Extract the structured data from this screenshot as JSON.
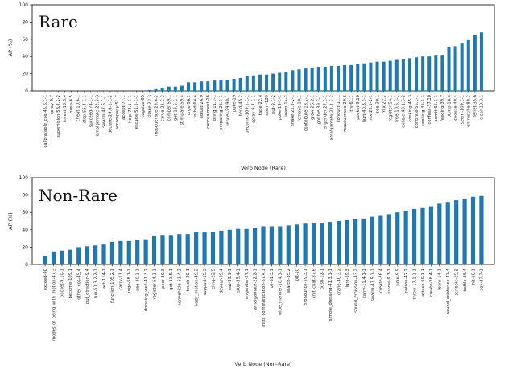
{
  "chart_data": [
    {
      "type": "bar",
      "title": "Rare",
      "xlabel": "Verb Node (Rare)",
      "ylabel": "AP (%)",
      "ylim": [
        0,
        100
      ],
      "yticks": [
        0,
        20,
        40,
        60,
        80,
        100
      ],
      "bar_color": "#1f77b4",
      "grid": false,
      "categories": [
        "calibratable_cos-45.6.1-1",
        "spray-9.7",
        "supervision-58.2.2-2",
        "invest-13.5.4",
        "bush-6.5",
        "cheat-10.6-1",
        "stop-55.4-1-1",
        "succeed-74-1-1",
        "amalgamate-22.2-3",
        "swarm-47.5.1-1",
        "declare-29.4-1-1-2",
        "accompany-51.7",
        "accept-77.1",
        "help-72.1-1-1",
        "escape-51.1-1-1",
        "cognize-85",
        "shake-22.3",
        "masquerade-29.6-2",
        "carve-21.2-2",
        "compel-59.1",
        "get-13.5.1-1",
        "stimulate-59.4",
        "urge-58.1",
        "forbid-64.4",
        "adjust-26.9",
        "concealment-16",
        "bring-11.3-1",
        "preparing-26.3-1",
        "render-29.90-1",
        "poke-19",
        "bend-45.2",
        "become-109.1-1-1",
        "spray-9.7-1-1",
        "tape-22.4",
        "seem-109",
        "put-9.1-2",
        "poke-19-1-1",
        "learn-14-2",
        "shake-22.3-2-1",
        "remove-10.1",
        "contribute-13.2-1",
        "grow-26.2.1",
        "gobble-39.3-1",
        "engender-27.1-1",
        "amalgamate-22.2-3-2",
        "conduct-11.1",
        "masquerade-29.6",
        "try-61.1",
        "pocket-9.10",
        "hurt-40.8.3-1",
        "mix-22.1-2-1",
        "see-30.1",
        "mix-22.2",
        "register-54.1",
        "free-10.6.3-1",
        "exhale-40.1.3-2",
        "cooking-45.3",
        "continue-55.3-1",
        "cooking-45.3-1",
        "confess-37.10",
        "admit-65.3-1",
        "feeding-39.7",
        "bump-18.4",
        "snooze-40.4",
        "seem-109.1-1",
        "entrust/lie-88.2",
        "ferret-35.6",
        "clear-10.3.1"
      ],
      "values": [
        0,
        0,
        0,
        0,
        0,
        0,
        0,
        0,
        0,
        0,
        0,
        0,
        0,
        0,
        0,
        0,
        1,
        2,
        3,
        5,
        5,
        6,
        10,
        10,
        11,
        11,
        12,
        13,
        13,
        14,
        15,
        17,
        18,
        19,
        19,
        20,
        21,
        22,
        24,
        25,
        26,
        27,
        28,
        28,
        29,
        29,
        30,
        30,
        31,
        32,
        33,
        34,
        34,
        35,
        36,
        37,
        38,
        39,
        40,
        40,
        41,
        41,
        51,
        52,
        55,
        59,
        65,
        68
      ]
    },
    {
      "type": "bar",
      "title": "Non-Rare",
      "xlabel": "Verb Node (Non-Rare)",
      "ylabel": "AP (%)",
      "ylim": [
        0,
        100
      ],
      "yticks": [
        0,
        20,
        40,
        60,
        80,
        100
      ],
      "bar_color": "#1f77b4",
      "grid": false,
      "categories": [
        "exceed-90",
        "modes_of_being_with_motion-47.3",
        "pocket-9.10-1",
        "become-109.1",
        "other_cos-45.4",
        "put_direction-9.4",
        "run-51.3.2-2-1",
        "act-114-1",
        "function-105.2.1",
        "carry-11.4",
        "urge-58.1-1",
        "see-30.1-1",
        "dressing_well-41.3.2",
        "register-54.1-1",
        "peer-30.3",
        "get-13.5.1",
        "nonvehicle-51.4.2",
        "touch-20-1",
        "body_motion-49.2",
        "support-15.3",
        "cling-22.5",
        "devour-39.4",
        "eat-39.1-1",
        "stop-55.4-1",
        "engender-27.1",
        "amalgamate-22.2-1",
        "instr_communication-37.4.1",
        "roll-51.3.1",
        "wipe_manner-10.4.1-1",
        "search-35.2",
        "pit-10",
        "pronounce-29.3.1",
        "chit_chat-37.6",
        "push-12-1",
        "simple_dressing-41.3.1-1",
        "crane-40.3.2",
        "lure-59.3",
        "sound_emission-43.2",
        "carry-11.4-1-1",
        "swarm-47.5.1-1",
        "create-26.4",
        "funnel-9.3-1",
        "pour-9.5",
        "poison-42.2",
        "throw-17.1-1-1",
        "attack-60.1-1",
        "create-26.4-1",
        "learn-14-1",
        "sound_existence-47.4",
        "scribble-25.2",
        "battle-36.4",
        "hit-18.1",
        "say-37.7-1"
      ],
      "values": [
        10,
        15,
        16,
        17,
        20,
        21,
        22,
        23,
        26,
        27,
        27,
        28,
        29,
        33,
        34,
        34,
        35,
        35,
        37,
        37,
        38,
        39,
        40,
        41,
        41,
        42,
        44,
        44,
        44,
        45,
        46,
        47,
        48,
        48,
        49,
        50,
        51,
        52,
        53,
        55,
        56,
        58,
        60,
        62,
        64,
        65,
        67,
        70,
        72,
        74,
        76,
        78,
        79
      ]
    }
  ]
}
